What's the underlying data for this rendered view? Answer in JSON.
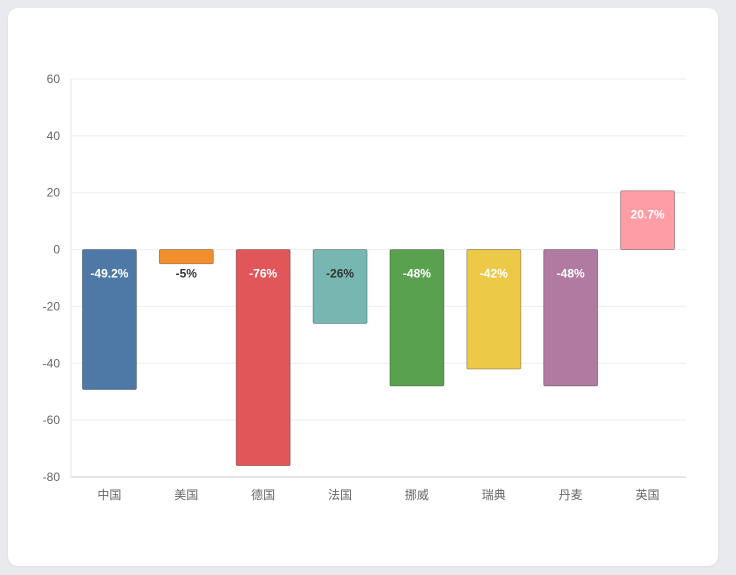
{
  "chart_data": {
    "type": "bar",
    "categories": [
      "中国",
      "美国",
      "德国",
      "法国",
      "挪威",
      "瑞典",
      "丹麦",
      "英国"
    ],
    "values": [
      -49.2,
      -5,
      -76,
      -26,
      -48,
      -42,
      -48,
      20.7
    ],
    "data_labels": [
      "-49.2%",
      "-5%",
      "-76%",
      "-26%",
      "-48%",
      "-42%",
      "-48%",
      "20.7%"
    ],
    "ylim": [
      -80,
      60
    ],
    "yticks": [
      60,
      40,
      20,
      0,
      -20,
      -40,
      -60,
      -80
    ],
    "grid": true,
    "legend": "none",
    "colors": [
      "#4e79a7",
      "#f28e2b",
      "#e15759",
      "#76b7b2",
      "#59a14f",
      "#edc948",
      "#b07aa1",
      "#ff9da7"
    ],
    "label_colors": [
      "#ffffff",
      "#333333",
      "#ffffff",
      "#333333",
      "#ffffff",
      "#ffffff",
      "#ffffff",
      "#ffffff"
    ]
  }
}
